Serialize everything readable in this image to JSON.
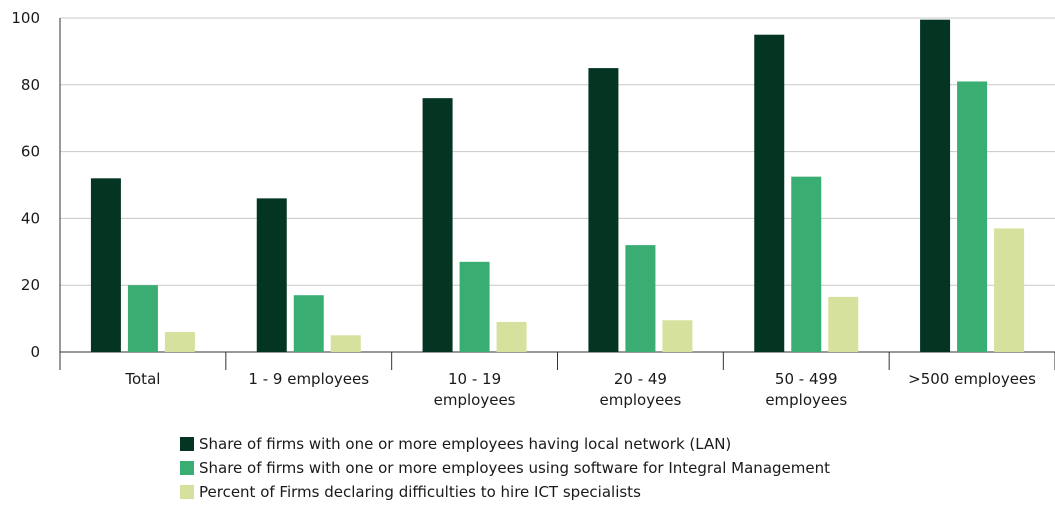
{
  "chart_data": {
    "type": "bar",
    "categories": [
      [
        "Total"
      ],
      [
        "1 - 9 employees"
      ],
      [
        "10 - 19",
        "employees"
      ],
      [
        "20 - 49",
        "employees"
      ],
      [
        "50 - 499",
        "employees"
      ],
      [
        ">500 employees"
      ]
    ],
    "series": [
      {
        "name": "Share of firms with one or more employees having local network (LAN)",
        "color": "#033522",
        "values": [
          52,
          46,
          76,
          85,
          95,
          99.5
        ]
      },
      {
        "name": "Share of firms with one or more employees using software for Integral Management",
        "color": "#3aad73",
        "values": [
          20,
          17,
          27,
          32,
          52.5,
          81
        ]
      },
      {
        "name": "Percent of Firms declaring difficulties to hire ICT specialists",
        "color": "#d5e19c",
        "values": [
          6,
          5,
          9,
          9.5,
          16.5,
          37
        ]
      }
    ],
    "ylim": [
      0,
      100
    ],
    "yticks": [
      0,
      20,
      40,
      60,
      80,
      100
    ],
    "grid": true,
    "legend_position": "bottom"
  }
}
